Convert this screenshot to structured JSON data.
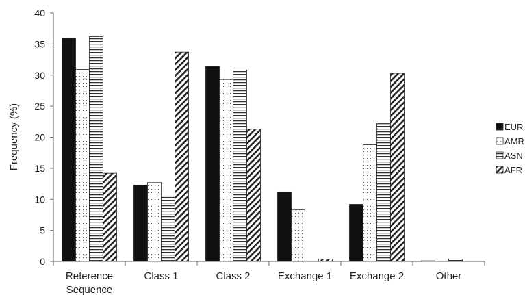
{
  "chart_data": {
    "type": "bar",
    "title": "",
    "xlabel": "",
    "ylabel": "Frequency (%)",
    "ylim": [
      0,
      40
    ],
    "yticks": [
      0,
      5,
      10,
      15,
      20,
      25,
      30,
      35,
      40
    ],
    "categories": [
      [
        "Reference",
        "Sequence"
      ],
      [
        "Class 1"
      ],
      [
        "Class 2"
      ],
      [
        "Exchange 1"
      ],
      [
        "Exchange 2"
      ],
      [
        "Other"
      ]
    ],
    "series": [
      {
        "name": "EUR",
        "pattern": "solid",
        "values": [
          35.9,
          12.3,
          31.4,
          11.2,
          9.2,
          0.1
        ]
      },
      {
        "name": "AMR",
        "pattern": "dots",
        "values": [
          30.9,
          12.7,
          29.3,
          8.3,
          18.8,
          0.0
        ]
      },
      {
        "name": "ASN",
        "pattern": "horizontal",
        "values": [
          36.2,
          10.5,
          30.8,
          0.0,
          22.2,
          0.4
        ]
      },
      {
        "name": "AFR",
        "pattern": "diagonal",
        "values": [
          14.2,
          33.7,
          21.3,
          0.4,
          30.3,
          0.0
        ]
      }
    ],
    "legend_position": "right",
    "grid": false,
    "colors": {
      "bar_fill": "#111111",
      "axis": "#666666"
    }
  }
}
